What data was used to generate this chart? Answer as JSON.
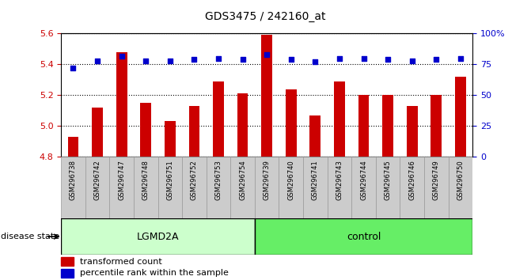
{
  "title": "GDS3475 / 242160_at",
  "samples": [
    "GSM296738",
    "GSM296742",
    "GSM296747",
    "GSM296748",
    "GSM296751",
    "GSM296752",
    "GSM296753",
    "GSM296754",
    "GSM296739",
    "GSM296740",
    "GSM296741",
    "GSM296743",
    "GSM296744",
    "GSM296745",
    "GSM296746",
    "GSM296749",
    "GSM296750"
  ],
  "bar_values": [
    4.93,
    5.12,
    5.48,
    5.15,
    5.03,
    5.13,
    5.29,
    5.21,
    5.59,
    5.24,
    5.07,
    5.29,
    5.2,
    5.2,
    5.13,
    5.2,
    5.32
  ],
  "dot_values": [
    72,
    78,
    82,
    78,
    78,
    79,
    80,
    79,
    83,
    79,
    77,
    80,
    80,
    79,
    78,
    79,
    80
  ],
  "ylim": [
    4.8,
    5.6
  ],
  "y2lim": [
    0,
    100
  ],
  "yticks": [
    4.8,
    5.0,
    5.2,
    5.4,
    5.6
  ],
  "y2ticks": [
    0,
    25,
    50,
    75,
    100
  ],
  "y2ticklabels": [
    "0",
    "25",
    "50",
    "75",
    "100%"
  ],
  "bar_color": "#cc0000",
  "dot_color": "#0000cc",
  "group_labels": [
    "LGMD2A",
    "control"
  ],
  "group_sizes": [
    8,
    9
  ],
  "group_colors": [
    "#ccffcc",
    "#66ee66"
  ],
  "xlabel": "disease state",
  "legend_items": [
    "transformed count",
    "percentile rank within the sample"
  ],
  "legend_colors": [
    "#cc0000",
    "#0000cc"
  ],
  "background_color": "#ffffff",
  "tick_label_color_left": "#cc0000",
  "tick_label_color_right": "#0000cc",
  "xtick_bg": "#cccccc",
  "xtick_edge": "#999999"
}
